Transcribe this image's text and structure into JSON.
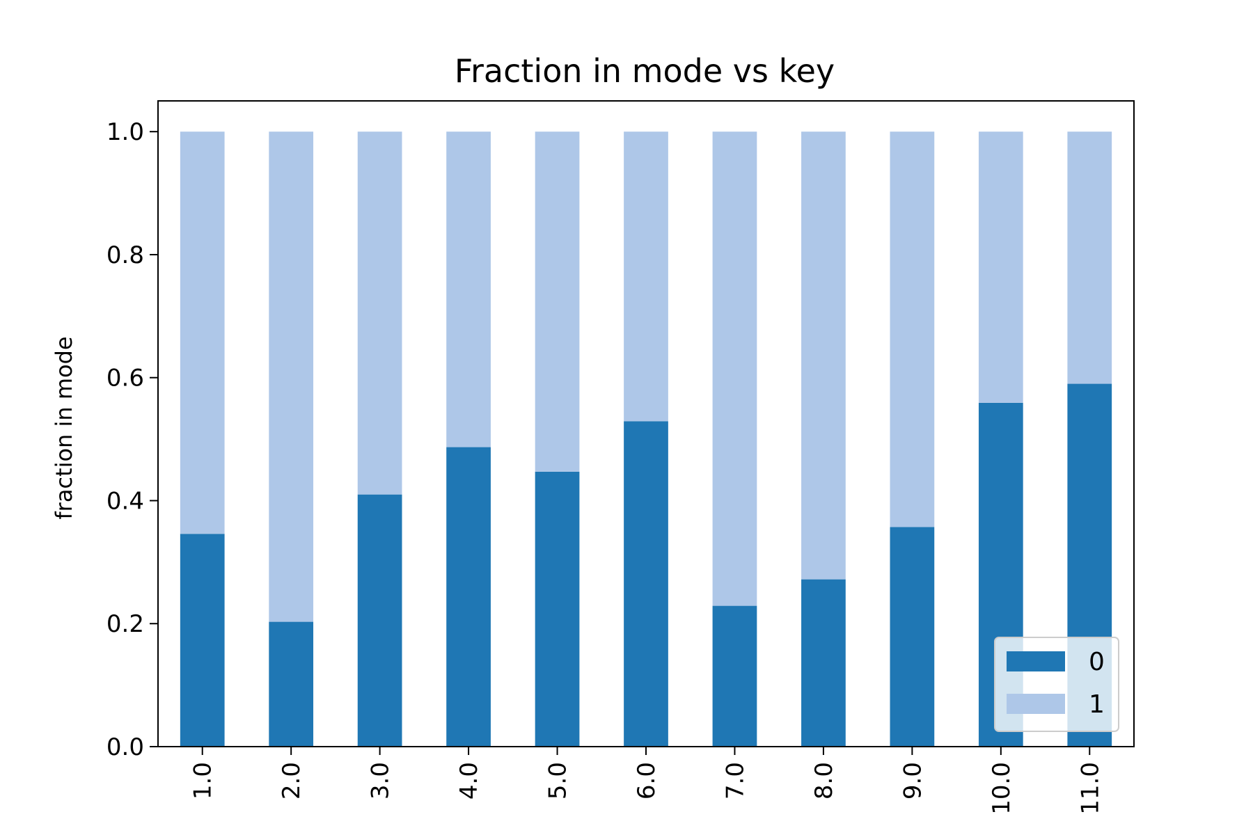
{
  "chart_data": {
    "type": "bar",
    "stacked": true,
    "title": "Fraction in mode vs key",
    "xlabel": "",
    "ylabel": "fraction in mode",
    "categories": [
      "1.0",
      "2.0",
      "3.0",
      "4.0",
      "5.0",
      "6.0",
      "7.0",
      "8.0",
      "9.0",
      "10.0",
      "11.0"
    ],
    "series": [
      {
        "name": "0",
        "color": "#1f77b4",
        "values": [
          0.346,
          0.203,
          0.41,
          0.487,
          0.447,
          0.529,
          0.229,
          0.272,
          0.357,
          0.559,
          0.59
        ]
      },
      {
        "name": "1",
        "color": "#aec7e8",
        "values": [
          0.654,
          0.797,
          0.59,
          0.513,
          0.553,
          0.471,
          0.771,
          0.728,
          0.643,
          0.441,
          0.41
        ]
      }
    ],
    "ylim": [
      0,
      1.05
    ],
    "yticks": [
      0.0,
      0.2,
      0.4,
      0.6,
      0.8,
      1.0
    ],
    "ytick_labels": [
      "0.0",
      "0.2",
      "0.4",
      "0.6",
      "0.8",
      "1.0"
    ],
    "grid": false,
    "legend_position": "lower right"
  }
}
